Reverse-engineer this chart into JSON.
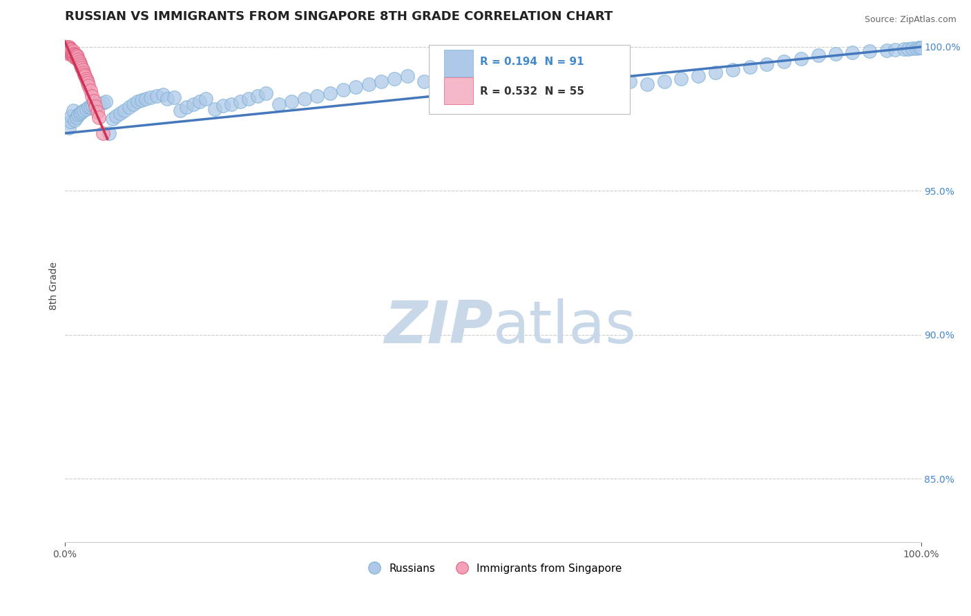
{
  "title": "RUSSIAN VS IMMIGRANTS FROM SINGAPORE 8TH GRADE CORRELATION CHART",
  "source": "Source: ZipAtlas.com",
  "ylabel": "8th Grade",
  "xlim": [
    0.0,
    1.0
  ],
  "ylim": [
    0.828,
    1.006
  ],
  "ytick_positions": [
    0.85,
    0.9,
    0.95,
    1.0
  ],
  "ytick_labels": [
    "85.0%",
    "90.0%",
    "95.0%",
    "100.0%"
  ],
  "blue_R": 0.194,
  "blue_N": 91,
  "pink_R": 0.532,
  "pink_N": 55,
  "blue_color": "#aec9e8",
  "blue_edge_color": "#7aafd4",
  "pink_color": "#f4a0b8",
  "pink_edge_color": "#e06080",
  "blue_line_color": "#4477bb",
  "pink_line_color": "#cc3355",
  "watermark_color": "#c8d8e8",
  "legend_box_blue": "#aec9e8",
  "legend_box_pink": "#f4b8c8",
  "blue_scatter_x": [
    0.005,
    0.007,
    0.008,
    0.01,
    0.012,
    0.014,
    0.016,
    0.018,
    0.02,
    0.022,
    0.025,
    0.028,
    0.03,
    0.033,
    0.036,
    0.04,
    0.045,
    0.048,
    0.052,
    0.056,
    0.06,
    0.065,
    0.07,
    0.075,
    0.08,
    0.085,
    0.09,
    0.095,
    0.1,
    0.108,
    0.115,
    0.12,
    0.128,
    0.135,
    0.142,
    0.15,
    0.158,
    0.165,
    0.175,
    0.185,
    0.195,
    0.205,
    0.215,
    0.225,
    0.235,
    0.25,
    0.265,
    0.28,
    0.295,
    0.31,
    0.325,
    0.34,
    0.355,
    0.37,
    0.385,
    0.4,
    0.42,
    0.44,
    0.46,
    0.48,
    0.5,
    0.52,
    0.54,
    0.56,
    0.58,
    0.6,
    0.62,
    0.64,
    0.66,
    0.68,
    0.7,
    0.72,
    0.74,
    0.76,
    0.78,
    0.8,
    0.82,
    0.84,
    0.86,
    0.88,
    0.9,
    0.92,
    0.94,
    0.96,
    0.97,
    0.98,
    0.985,
    0.99,
    0.995,
    0.998,
    1.0
  ],
  "blue_scatter_y": [
    0.972,
    0.974,
    0.976,
    0.978,
    0.9745,
    0.9755,
    0.9765,
    0.977,
    0.9775,
    0.978,
    0.9785,
    0.979,
    0.979,
    0.9795,
    0.98,
    0.98,
    0.9805,
    0.981,
    0.97,
    0.975,
    0.976,
    0.977,
    0.978,
    0.979,
    0.98,
    0.981,
    0.9815,
    0.982,
    0.9825,
    0.983,
    0.9835,
    0.982,
    0.9825,
    0.978,
    0.979,
    0.98,
    0.981,
    0.982,
    0.9785,
    0.9795,
    0.98,
    0.981,
    0.982,
    0.983,
    0.984,
    0.98,
    0.981,
    0.982,
    0.983,
    0.984,
    0.985,
    0.986,
    0.987,
    0.988,
    0.989,
    0.99,
    0.988,
    0.987,
    0.986,
    0.985,
    0.987,
    0.988,
    0.989,
    0.99,
    0.991,
    0.992,
    0.99,
    0.989,
    0.988,
    0.987,
    0.988,
    0.989,
    0.99,
    0.991,
    0.992,
    0.993,
    0.994,
    0.995,
    0.996,
    0.997,
    0.9975,
    0.998,
    0.9985,
    0.9988,
    0.999,
    0.9992,
    0.9993,
    0.9994,
    0.9995,
    0.9997,
    0.9998
  ],
  "pink_scatter_x": [
    0.002,
    0.003,
    0.003,
    0.004,
    0.004,
    0.004,
    0.005,
    0.005,
    0.005,
    0.005,
    0.005,
    0.006,
    0.006,
    0.006,
    0.007,
    0.007,
    0.007,
    0.008,
    0.008,
    0.008,
    0.009,
    0.009,
    0.01,
    0.01,
    0.01,
    0.011,
    0.011,
    0.012,
    0.012,
    0.013,
    0.013,
    0.014,
    0.014,
    0.015,
    0.015,
    0.016,
    0.017,
    0.018,
    0.019,
    0.02,
    0.021,
    0.022,
    0.023,
    0.024,
    0.025,
    0.026,
    0.027,
    0.028,
    0.03,
    0.032,
    0.034,
    0.036,
    0.038,
    0.04,
    0.045
  ],
  "pink_scatter_y": [
    0.999,
    0.9995,
    1.0,
    0.9985,
    0.9992,
    0.9998,
    0.998,
    0.9988,
    0.9994,
    0.9999,
    0.9975,
    0.9982,
    0.999,
    0.9996,
    0.9978,
    0.9986,
    0.9993,
    0.9976,
    0.9984,
    0.9991,
    0.9974,
    0.9982,
    0.997,
    0.9978,
    0.9986,
    0.9968,
    0.9976,
    0.9965,
    0.9974,
    0.9963,
    0.9972,
    0.996,
    0.997,
    0.9958,
    0.9967,
    0.9956,
    0.995,
    0.9942,
    0.9935,
    0.9928,
    0.992,
    0.9912,
    0.9905,
    0.9898,
    0.989,
    0.9882,
    0.9874,
    0.9865,
    0.9848,
    0.983,
    0.9812,
    0.9793,
    0.9775,
    0.9756,
    0.97
  ],
  "blue_trendline_x": [
    0.0,
    1.0
  ],
  "blue_trendline_y": [
    0.97,
    1.0
  ],
  "pink_trendline_x": [
    0.0,
    0.05
  ],
  "pink_trendline_y": [
    1.002,
    0.968
  ]
}
